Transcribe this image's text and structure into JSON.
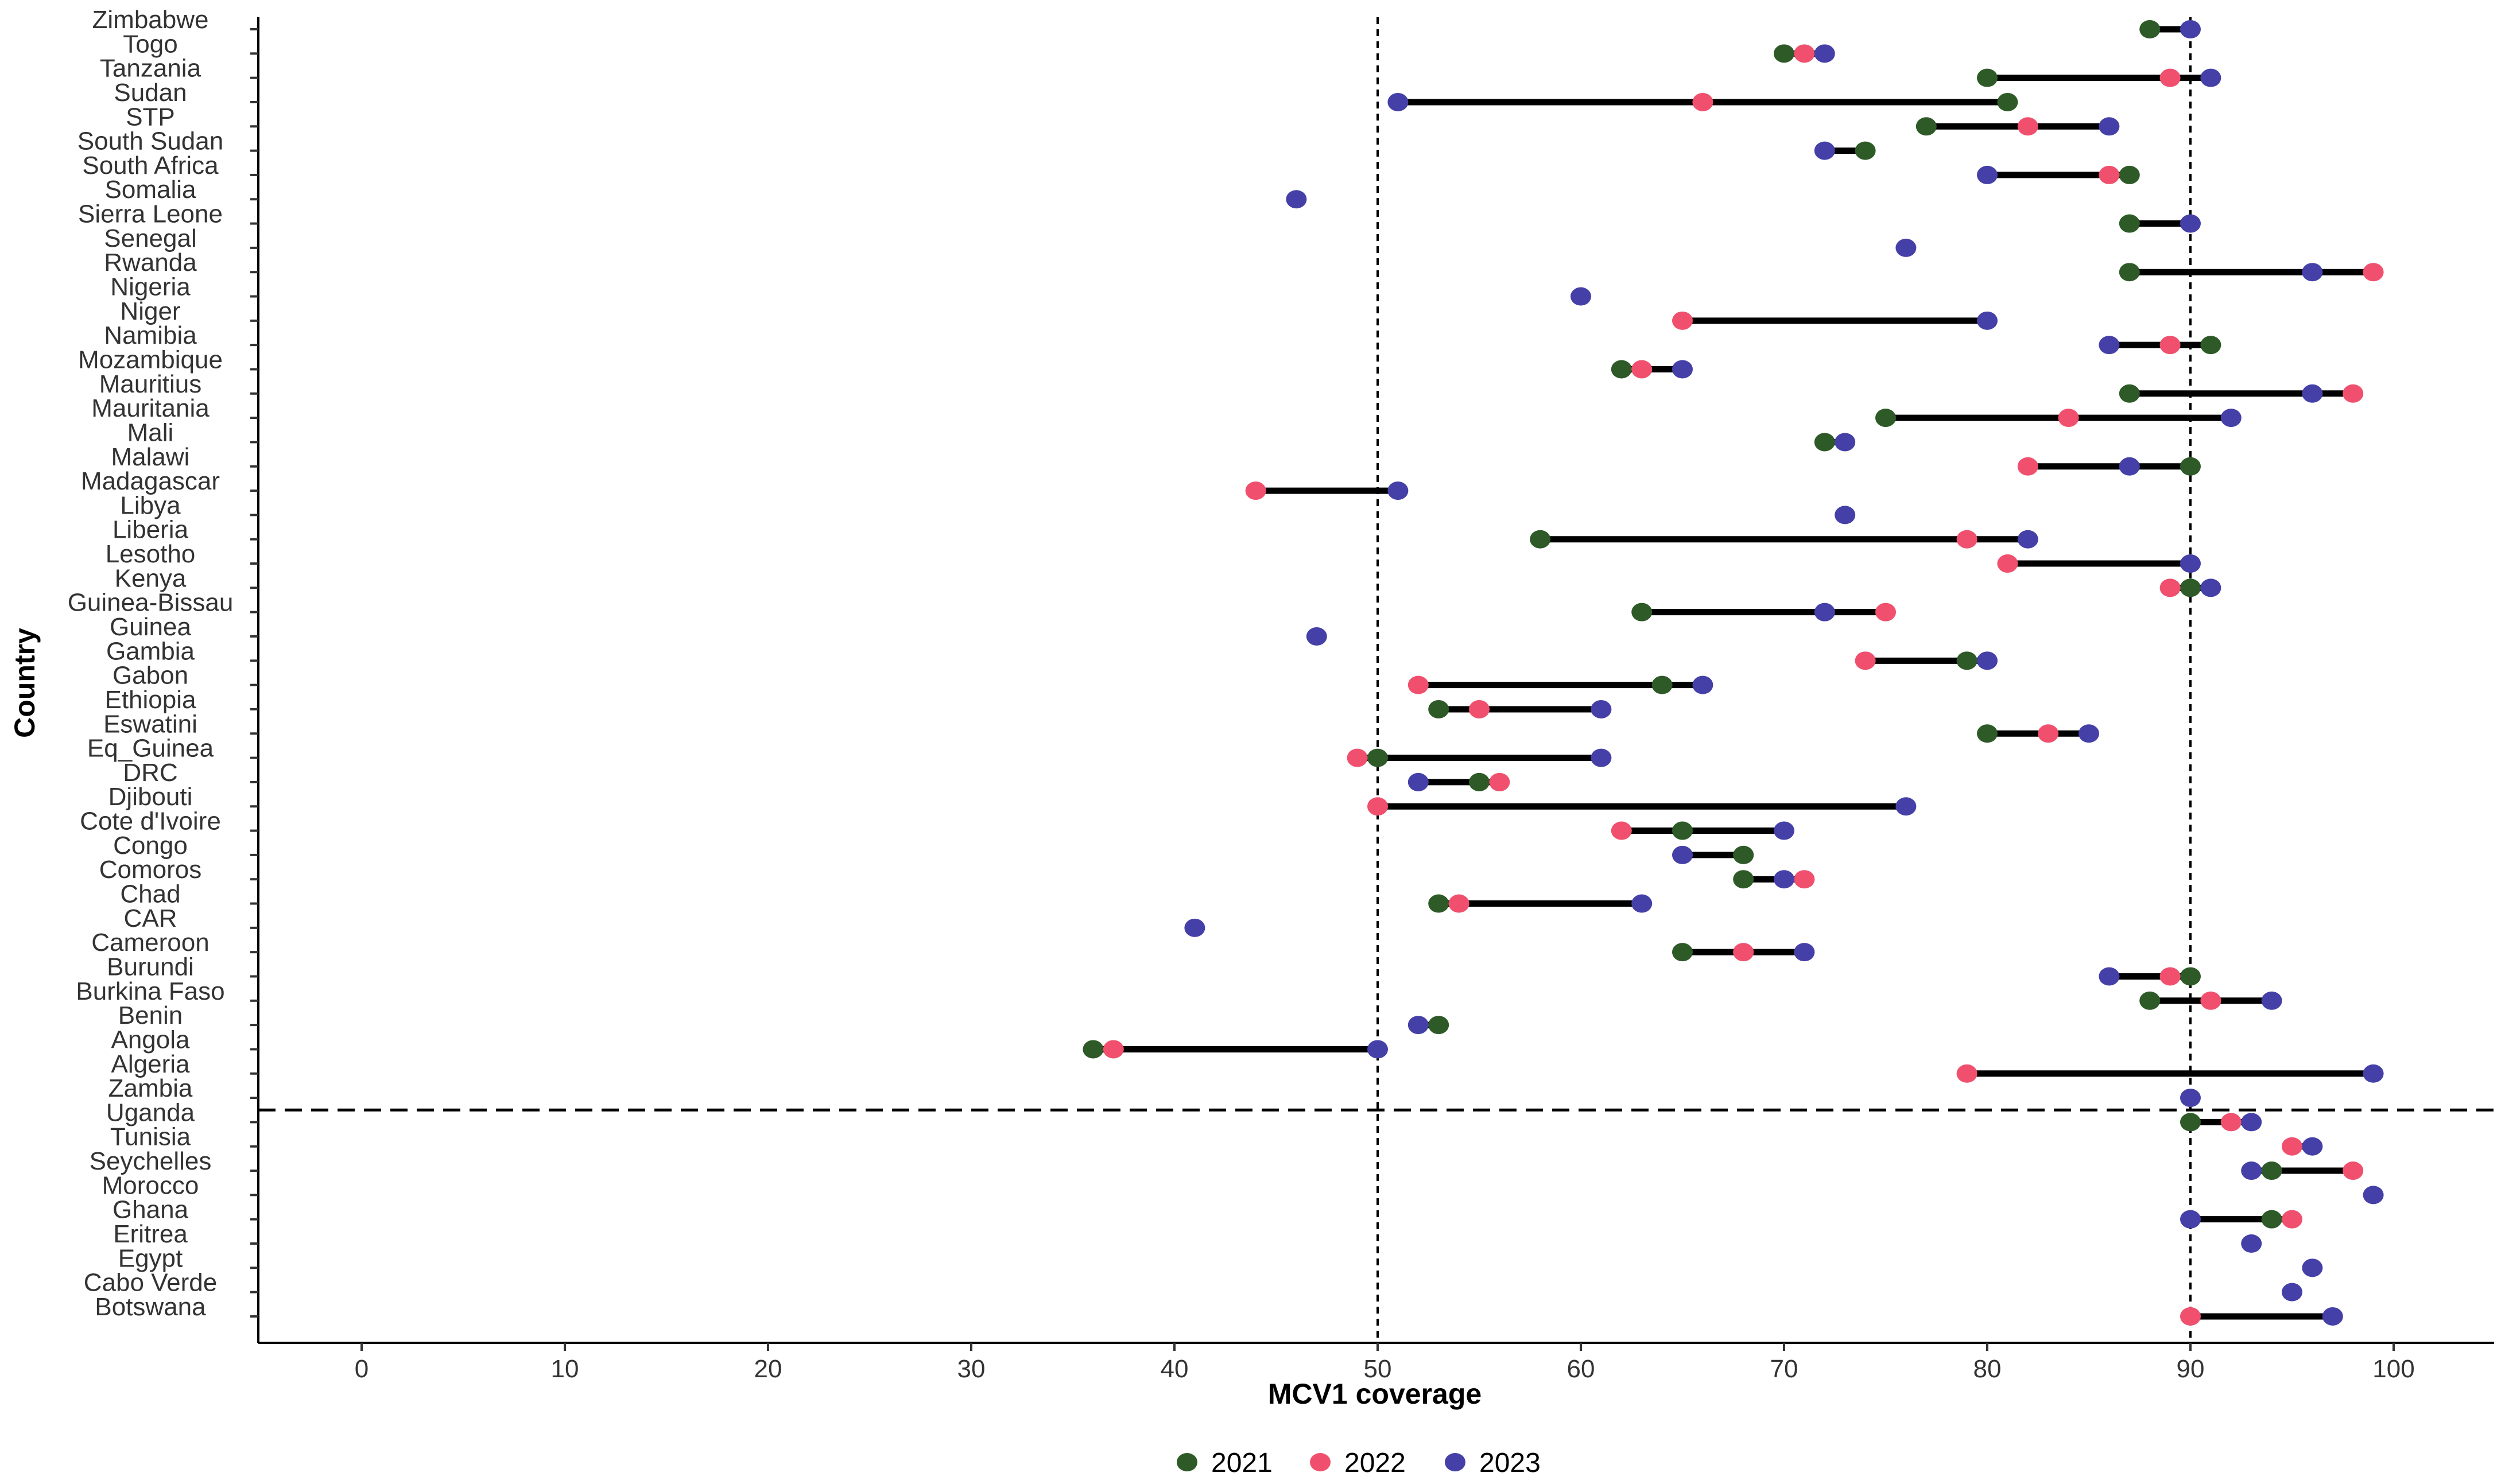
{
  "chart_data": {
    "type": "dumbbell",
    "xlabel": "MCV1 coverage",
    "ylabel": "Country",
    "xlim": [
      -5,
      105
    ],
    "xticks": [
      0,
      10,
      20,
      30,
      40,
      50,
      60,
      70,
      80,
      90,
      100
    ],
    "reference_lines_x": [
      50,
      90
    ],
    "legend": [
      {
        "label": "2021",
        "color": "#2d5a27"
      },
      {
        "label": "2022",
        "color": "#f0506e"
      },
      {
        "label": "2023",
        "color": "#4540a8"
      }
    ],
    "divider_after": "Zambia",
    "countries": [
      {
        "name": "Zimbabwe",
        "y2021": 88,
        "y2022": null,
        "y2023": 90
      },
      {
        "name": "Togo",
        "y2021": 70,
        "y2022": 71,
        "y2023": 72
      },
      {
        "name": "Tanzania",
        "y2021": 80,
        "y2022": 89,
        "y2023": 91
      },
      {
        "name": "Sudan",
        "y2021": 81,
        "y2022": 66,
        "y2023": 51
      },
      {
        "name": "STP",
        "y2021": 77,
        "y2022": 82,
        "y2023": 86
      },
      {
        "name": "South Sudan",
        "y2021": 74,
        "y2022": null,
        "y2023": 72
      },
      {
        "name": "South Africa",
        "y2021": 87,
        "y2022": 86,
        "y2023": 80
      },
      {
        "name": "Somalia",
        "y2021": null,
        "y2022": null,
        "y2023": 46
      },
      {
        "name": "Sierra Leone",
        "y2021": 87,
        "y2022": null,
        "y2023": 90
      },
      {
        "name": "Senegal",
        "y2021": null,
        "y2022": null,
        "y2023": 76
      },
      {
        "name": "Rwanda",
        "y2021": 87,
        "y2022": 99,
        "y2023": 96
      },
      {
        "name": "Nigeria",
        "y2021": null,
        "y2022": null,
        "y2023": 60
      },
      {
        "name": "Niger",
        "y2021": null,
        "y2022": 65,
        "y2023": 80
      },
      {
        "name": "Namibia",
        "y2021": 91,
        "y2022": 89,
        "y2023": 86
      },
      {
        "name": "Mozambique",
        "y2021": 62,
        "y2022": 63,
        "y2023": 65
      },
      {
        "name": "Mauritius",
        "y2021": 87,
        "y2022": 98,
        "y2023": 96
      },
      {
        "name": "Mauritania",
        "y2021": 75,
        "y2022": 84,
        "y2023": 92
      },
      {
        "name": "Mali",
        "y2021": 72,
        "y2022": null,
        "y2023": 73
      },
      {
        "name": "Malawi",
        "y2021": 90,
        "y2022": 82,
        "y2023": 87
      },
      {
        "name": "Madagascar",
        "y2021": null,
        "y2022": 44,
        "y2023": 51
      },
      {
        "name": "Libya",
        "y2021": null,
        "y2022": null,
        "y2023": 73
      },
      {
        "name": "Liberia",
        "y2021": 58,
        "y2022": 79,
        "y2023": 82
      },
      {
        "name": "Lesotho",
        "y2021": null,
        "y2022": 81,
        "y2023": 90
      },
      {
        "name": "Kenya",
        "y2021": 90,
        "y2022": 89,
        "y2023": 91
      },
      {
        "name": "Guinea-Bissau",
        "y2021": 63,
        "y2022": 75,
        "y2023": 72
      },
      {
        "name": "Guinea",
        "y2021": null,
        "y2022": null,
        "y2023": 47
      },
      {
        "name": "Gambia",
        "y2021": 79,
        "y2022": 74,
        "y2023": 80
      },
      {
        "name": "Gabon",
        "y2021": 64,
        "y2022": 52,
        "y2023": 66
      },
      {
        "name": "Ethiopia",
        "y2021": 53,
        "y2022": 55,
        "y2023": 61
      },
      {
        "name": "Eswatini",
        "y2021": 80,
        "y2022": 83,
        "y2023": 85
      },
      {
        "name": "Eq_Guinea",
        "y2021": 50,
        "y2022": 49,
        "y2023": 61
      },
      {
        "name": "DRC",
        "y2021": 55,
        "y2022": 56,
        "y2023": 52
      },
      {
        "name": "Djibouti",
        "y2021": null,
        "y2022": 50,
        "y2023": 76
      },
      {
        "name": "Cote d'Ivoire",
        "y2021": 65,
        "y2022": 62,
        "y2023": 70
      },
      {
        "name": "Congo",
        "y2021": 68,
        "y2022": null,
        "y2023": 65
      },
      {
        "name": "Comoros",
        "y2021": 68,
        "y2022": 71,
        "y2023": 70
      },
      {
        "name": "Chad",
        "y2021": 53,
        "y2022": 54,
        "y2023": 63
      },
      {
        "name": "CAR",
        "y2021": null,
        "y2022": null,
        "y2023": 41
      },
      {
        "name": "Cameroon",
        "y2021": 65,
        "y2022": 68,
        "y2023": 71
      },
      {
        "name": "Burundi",
        "y2021": 90,
        "y2022": 89,
        "y2023": 86
      },
      {
        "name": "Burkina Faso",
        "y2021": 88,
        "y2022": 91,
        "y2023": 94
      },
      {
        "name": "Benin",
        "y2021": 53,
        "y2022": null,
        "y2023": 52
      },
      {
        "name": "Angola",
        "y2021": 36,
        "y2022": 37,
        "y2023": 50
      },
      {
        "name": "Algeria",
        "y2021": null,
        "y2022": 79,
        "y2023": 99
      },
      {
        "name": "Zambia",
        "y2021": null,
        "y2022": null,
        "y2023": 90
      },
      {
        "name": "Uganda",
        "y2021": 90,
        "y2022": 92,
        "y2023": 93
      },
      {
        "name": "Tunisia",
        "y2021": null,
        "y2022": 95,
        "y2023": 96
      },
      {
        "name": "Seychelles",
        "y2021": 94,
        "y2022": 98,
        "y2023": 93
      },
      {
        "name": "Morocco",
        "y2021": null,
        "y2022": null,
        "y2023": 99
      },
      {
        "name": "Ghana",
        "y2021": 94,
        "y2022": 95,
        "y2023": 90
      },
      {
        "name": "Eritrea",
        "y2021": null,
        "y2022": null,
        "y2023": 93
      },
      {
        "name": "Egypt",
        "y2021": null,
        "y2022": null,
        "y2023": 96
      },
      {
        "name": "Cabo Verde",
        "y2021": null,
        "y2022": null,
        "y2023": 95
      },
      {
        "name": "Botswana",
        "y2021": null,
        "y2022": 90,
        "y2023": 97
      }
    ]
  }
}
